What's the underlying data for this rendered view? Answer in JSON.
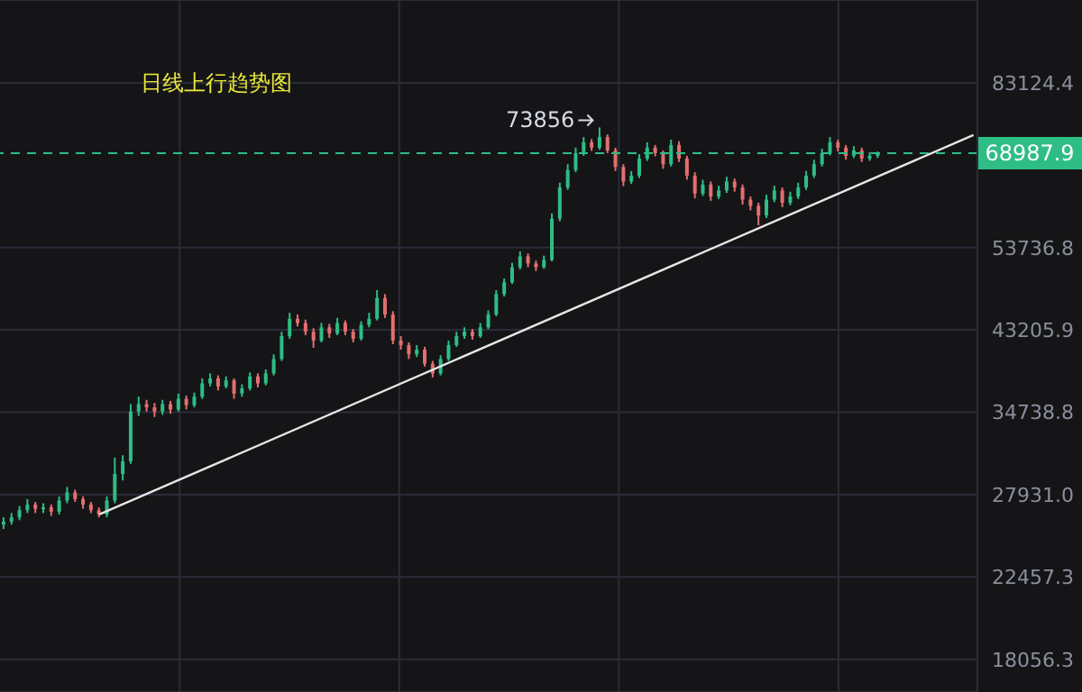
{
  "chart_data": {
    "type": "candlestick",
    "title": "日线上行趋势图",
    "categories": [
      null,
      null,
      null,
      null,
      null,
      null,
      null,
      null,
      null,
      null,
      null,
      null,
      null,
      null,
      null,
      null,
      null,
      null,
      null,
      null,
      null,
      null,
      null,
      null,
      null,
      null,
      null,
      null,
      null,
      null,
      null,
      null,
      null,
      null,
      null,
      null,
      null,
      null,
      null,
      null,
      null,
      null,
      null,
      null,
      null,
      null,
      null,
      null,
      null,
      null,
      null,
      null,
      null,
      null,
      null,
      null,
      null,
      null,
      null,
      null,
      null,
      null,
      null,
      null,
      null,
      null,
      null,
      null,
      null,
      null,
      null,
      null,
      null,
      null,
      null,
      null,
      null,
      null,
      null,
      null,
      null,
      null,
      null,
      null,
      null,
      null,
      null,
      null,
      null,
      null,
      null,
      null,
      null,
      null,
      null,
      null,
      null,
      null,
      null,
      null,
      null,
      null,
      null,
      null,
      null,
      null,
      null,
      null,
      null,
      null,
      null,
      null,
      null,
      null,
      null,
      null,
      null,
      null,
      null,
      null,
      null,
      null,
      null
    ],
    "colors": [
      "#2ebd85",
      "#2ebd85",
      "#2ebd85",
      "#2ebd85",
      "#e36f6f",
      "#2ebd85",
      "#e36f6f",
      "#2ebd85",
      "#2ebd85",
      "#e36f6f",
      "#e36f6f",
      "#e36f6f",
      "#e36f6f",
      "#2ebd85",
      "#2ebd85",
      "#2ebd85",
      "#2ebd85",
      "#2ebd85",
      "#e36f6f",
      "#e36f6f",
      "#2ebd85",
      "#e36f6f",
      "#2ebd85",
      "#e36f6f",
      "#2ebd85",
      "#2ebd85",
      "#2ebd85",
      "#e36f6f",
      "#2ebd85",
      "#e36f6f",
      "#2ebd85",
      "#2ebd85",
      "#e36f6f",
      "#2ebd85",
      "#2ebd85",
      "#2ebd85",
      "#2ebd85",
      "#e36f6f",
      "#e36f6f",
      "#e36f6f",
      "#2ebd85",
      "#e36f6f",
      "#2ebd85",
      "#e36f6f",
      "#e36f6f",
      "#2ebd85",
      "#2ebd85",
      "#2ebd85",
      "#e36f6f",
      "#e36f6f",
      "#e36f6f",
      "#e36f6f",
      "#2ebd85",
      "#e36f6f",
      "#e36f6f",
      "#2ebd85",
      "#2ebd85",
      "#2ebd85",
      "#2ebd85",
      "#e36f6f",
      "#2ebd85",
      "#2ebd85",
      "#2ebd85",
      "#2ebd85",
      "#2ebd85",
      "#2ebd85",
      "#e36f6f",
      "#e36f6f",
      "#2ebd85",
      "#2ebd85",
      "#2ebd85",
      "#2ebd85",
      "#2ebd85",
      "#2ebd85",
      "#e36f6f",
      "#2ebd85",
      "#e36f6f",
      "#e36f6f",
      "#e36f6f",
      "#2ebd85",
      "#2ebd85",
      "#2ebd85",
      "#e36f6f",
      "#e36f6f",
      "#2ebd85",
      "#e36f6f",
      "#e36f6f",
      "#e36f6f",
      "#2ebd85",
      "#e36f6f",
      "#2ebd85",
      "#2ebd85",
      "#e36f6f",
      "#e36f6f",
      "#e36f6f",
      "#e36f6f",
      "#2ebd85",
      "#2ebd85",
      "#e36f6f",
      "#2ebd85",
      "#2ebd85",
      "#2ebd85",
      "#2ebd85",
      "#2ebd85",
      "#2ebd85",
      "#e36f6f",
      "#e36f6f",
      "#2ebd85",
      "#e36f6f",
      "#2ebd85",
      "#2ebd85",
      null,
      null,
      null,
      null,
      null,
      null,
      null,
      null,
      null,
      null,
      null,
      null
    ],
    "ohlc": [
      [
        25800,
        26300,
        25500,
        26000
      ],
      [
        26000,
        26600,
        25800,
        26300
      ],
      [
        26300,
        27100,
        26100,
        26800
      ],
      [
        26800,
        27600,
        26600,
        27200
      ],
      [
        27200,
        27400,
        26600,
        26900
      ],
      [
        26900,
        27300,
        26600,
        27000
      ],
      [
        27000,
        27200,
        26400,
        26700
      ],
      [
        26700,
        27800,
        26500,
        27500
      ],
      [
        27500,
        28500,
        27300,
        28100
      ],
      [
        28100,
        28300,
        27400,
        27600
      ],
      [
        27600,
        27800,
        26900,
        27200
      ],
      [
        27200,
        27400,
        26600,
        26800
      ],
      [
        26800,
        27000,
        26300,
        26500
      ],
      [
        26500,
        27800,
        26300,
        27500
      ],
      [
        27500,
        30800,
        27300,
        29500
      ],
      [
        29500,
        31000,
        29000,
        30500
      ],
      [
        30500,
        35500,
        30300,
        34800
      ],
      [
        34800,
        36200,
        34400,
        35500
      ],
      [
        35500,
        35900,
        34800,
        35200
      ],
      [
        35200,
        35600,
        34300,
        34800
      ],
      [
        34800,
        35900,
        34500,
        35500
      ],
      [
        35500,
        35800,
        34600,
        35000
      ],
      [
        35000,
        36500,
        34800,
        36000
      ],
      [
        36000,
        36300,
        35000,
        35400
      ],
      [
        35400,
        36600,
        35200,
        36200
      ],
      [
        36200,
        38000,
        36000,
        37500
      ],
      [
        37500,
        38500,
        37200,
        38000
      ],
      [
        38000,
        38300,
        36800,
        37200
      ],
      [
        37200,
        38200,
        37000,
        37800
      ],
      [
        37800,
        38000,
        36000,
        36500
      ],
      [
        36500,
        37400,
        36200,
        37000
      ],
      [
        37000,
        38600,
        36800,
        38200
      ],
      [
        38200,
        38500,
        37100,
        37500
      ],
      [
        37500,
        38900,
        37300,
        38500
      ],
      [
        38500,
        40500,
        38300,
        40000
      ],
      [
        40000,
        43000,
        39800,
        42500
      ],
      [
        42500,
        45200,
        42200,
        44500
      ],
      [
        44500,
        45000,
        43600,
        44000
      ],
      [
        44000,
        44400,
        42600,
        43000
      ],
      [
        43000,
        43400,
        41200,
        42000
      ],
      [
        42000,
        44000,
        41800,
        43500
      ],
      [
        43500,
        43900,
        42300,
        42800
      ],
      [
        42800,
        44600,
        42600,
        44000
      ],
      [
        44000,
        44300,
        42600,
        43000
      ],
      [
        43000,
        43300,
        41800,
        42200
      ],
      [
        42200,
        44200,
        42000,
        43800
      ],
      [
        43800,
        45200,
        43500,
        44500
      ],
      [
        44500,
        48000,
        44300,
        47000
      ],
      [
        47000,
        47500,
        44600,
        45000
      ],
      [
        45000,
        45400,
        41600,
        42000
      ],
      [
        42000,
        42500,
        41000,
        41500
      ],
      [
        41500,
        41800,
        40000,
        40500
      ],
      [
        40500,
        41500,
        40200,
        41000
      ],
      [
        41000,
        41300,
        39200,
        39500
      ],
      [
        39500,
        39800,
        38100,
        38500
      ],
      [
        38500,
        40400,
        38300,
        40000
      ],
      [
        40000,
        42000,
        39800,
        41500
      ],
      [
        41500,
        43000,
        41300,
        42500
      ],
      [
        42500,
        43500,
        42200,
        43000
      ],
      [
        43000,
        43300,
        42100,
        42500
      ],
      [
        42500,
        44000,
        42300,
        43500
      ],
      [
        43500,
        45500,
        43300,
        45000
      ],
      [
        45000,
        48000,
        44800,
        47500
      ],
      [
        47500,
        49500,
        47200,
        49000
      ],
      [
        49000,
        51600,
        48800,
        51000
      ],
      [
        51000,
        53200,
        50700,
        52500
      ],
      [
        52500,
        52900,
        51000,
        51500
      ],
      [
        51500,
        51900,
        50500,
        51000
      ],
      [
        51000,
        52600,
        50800,
        52000
      ],
      [
        52000,
        58800,
        51800,
        58000
      ],
      [
        58000,
        63800,
        57600,
        63000
      ],
      [
        63000,
        67000,
        62600,
        66000
      ],
      [
        66000,
        70000,
        65600,
        69000
      ],
      [
        69000,
        72000,
        68500,
        71000
      ],
      [
        71000,
        71600,
        69400,
        70000
      ],
      [
        70000,
        73856,
        69600,
        72000
      ],
      [
        72000,
        72500,
        69000,
        69500
      ],
      [
        69500,
        70000,
        65800,
        66500
      ],
      [
        66500,
        67000,
        63200,
        64000
      ],
      [
        64000,
        65800,
        63600,
        65000
      ],
      [
        65000,
        68800,
        64600,
        68000
      ],
      [
        68000,
        71000,
        67600,
        70000
      ],
      [
        70000,
        70500,
        68400,
        69000
      ],
      [
        69000,
        69500,
        66200,
        67000
      ],
      [
        67000,
        71500,
        66600,
        70500
      ],
      [
        70500,
        71200,
        67400,
        68000
      ],
      [
        68000,
        68500,
        64300,
        65000
      ],
      [
        65000,
        65600,
        61200,
        62000
      ],
      [
        62000,
        64300,
        61600,
        63500
      ],
      [
        63500,
        64000,
        60800,
        61500
      ],
      [
        61500,
        63300,
        61100,
        62500
      ],
      [
        62500,
        64800,
        62100,
        64000
      ],
      [
        64000,
        64500,
        62300,
        63000
      ],
      [
        63000,
        63500,
        60200,
        61000
      ],
      [
        61000,
        61500,
        59300,
        60000
      ],
      [
        60000,
        60500,
        57000,
        58500
      ],
      [
        58500,
        61800,
        58100,
        61000
      ],
      [
        61000,
        63300,
        60600,
        62500
      ],
      [
        62500,
        63000,
        59800,
        60500
      ],
      [
        60500,
        62300,
        60100,
        61500
      ],
      [
        61500,
        63800,
        61100,
        63000
      ],
      [
        63000,
        65800,
        62600,
        65000
      ],
      [
        65000,
        67800,
        64600,
        67000
      ],
      [
        67000,
        69800,
        66600,
        69000
      ],
      [
        69000,
        72000,
        68600,
        71000
      ],
      [
        71000,
        71500,
        69300,
        70000
      ],
      [
        70000,
        70500,
        67800,
        68500
      ],
      [
        68500,
        70300,
        68100,
        69500
      ],
      [
        69500,
        70000,
        67400,
        68000
      ],
      [
        68000,
        69200,
        67600,
        68500
      ],
      [
        68500,
        69300,
        68100,
        68987.9
      ],
      null,
      null,
      null,
      null,
      null,
      null,
      null,
      null,
      null,
      null,
      null,
      null
    ],
    "series": [
      {
        "type": "line",
        "color": "#e6e6e6",
        "values": [
          null,
          null,
          null,
          null,
          null,
          null,
          null,
          null,
          null,
          null,
          null,
          null,
          26500,
          null,
          null,
          null,
          null,
          null,
          null,
          null,
          null,
          null,
          null,
          null,
          null,
          null,
          null,
          null,
          null,
          null,
          null,
          null,
          null,
          null,
          null,
          null,
          null,
          null,
          null,
          null,
          null,
          null,
          null,
          null,
          null,
          null,
          null,
          null,
          null,
          null,
          null,
          null,
          null,
          null,
          null,
          null,
          null,
          null,
          null,
          null,
          null,
          null,
          null,
          null,
          null,
          null,
          null,
          null,
          null,
          null,
          null,
          null,
          null,
          null,
          null,
          null,
          null,
          null,
          null,
          null,
          null,
          null,
          null,
          null,
          null,
          null,
          null,
          null,
          null,
          null,
          null,
          null,
          null,
          null,
          null,
          null,
          null,
          null,
          null,
          null,
          null,
          null,
          null,
          null,
          null,
          null,
          null,
          null,
          null,
          null,
          null,
          null,
          null,
          null,
          null,
          null,
          null,
          null,
          null,
          null,
          null,
          null,
          72390
        ]
      }
    ],
    "ref_lines": [
      {
        "axis": "y",
        "value": 68987.9,
        "label": "68987.9",
        "color": "#2ebd85",
        "line_style": "dashed"
      }
    ],
    "annotations": [
      "73856"
    ],
    "log": "y",
    "ylim": [
      16560,
      103500
    ],
    "yticks": [
      18056.3,
      22457.3,
      {
        "value": 27931.0,
        "label": "27931.0"
      },
      34738.8,
      43205.9,
      53736.8,
      83124.4
    ],
    "grid": true,
    "tick_labels": "y"
  }
}
